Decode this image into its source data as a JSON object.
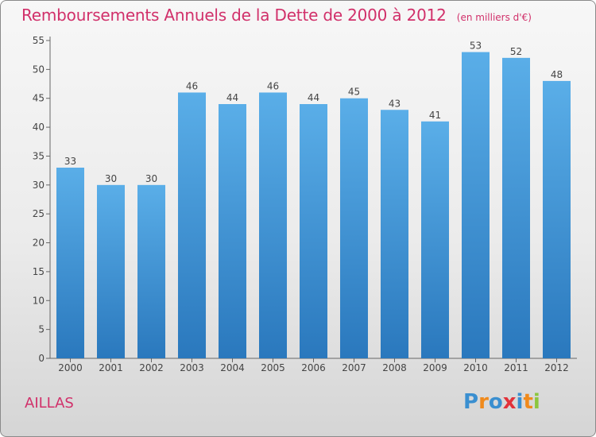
{
  "chart_data": {
    "type": "bar",
    "title": "Remboursements Annuels de la Dette de 2000 à 2012",
    "subtitle": "(en milliers d'€)",
    "categories": [
      "2000",
      "2001",
      "2002",
      "2003",
      "2004",
      "2005",
      "2006",
      "2007",
      "2008",
      "2009",
      "2010",
      "2011",
      "2012"
    ],
    "values": [
      33,
      30,
      30,
      46,
      44,
      46,
      44,
      45,
      43,
      41,
      53,
      52,
      48
    ],
    "xlabel": "",
    "ylabel": "",
    "ylim": [
      0,
      55
    ],
    "yticks": [
      0,
      5,
      10,
      15,
      20,
      25,
      30,
      35,
      40,
      45,
      50,
      55
    ],
    "grid": false,
    "bar_color": "#3d8fd6"
  },
  "place_label": "AILLAS",
  "logo": {
    "text": "Proxiti",
    "letters": [
      {
        "ch": "P",
        "color": "#3a8fd0"
      },
      {
        "ch": "r",
        "color": "#f08a1c"
      },
      {
        "ch": "o",
        "color": "#3a8fd0"
      },
      {
        "ch": "x",
        "color": "#e2323a"
      },
      {
        "ch": "i",
        "color": "#3a8fd0"
      },
      {
        "ch": "t",
        "color": "#f08a1c"
      },
      {
        "ch": "i",
        "color": "#8cc63f"
      }
    ]
  }
}
